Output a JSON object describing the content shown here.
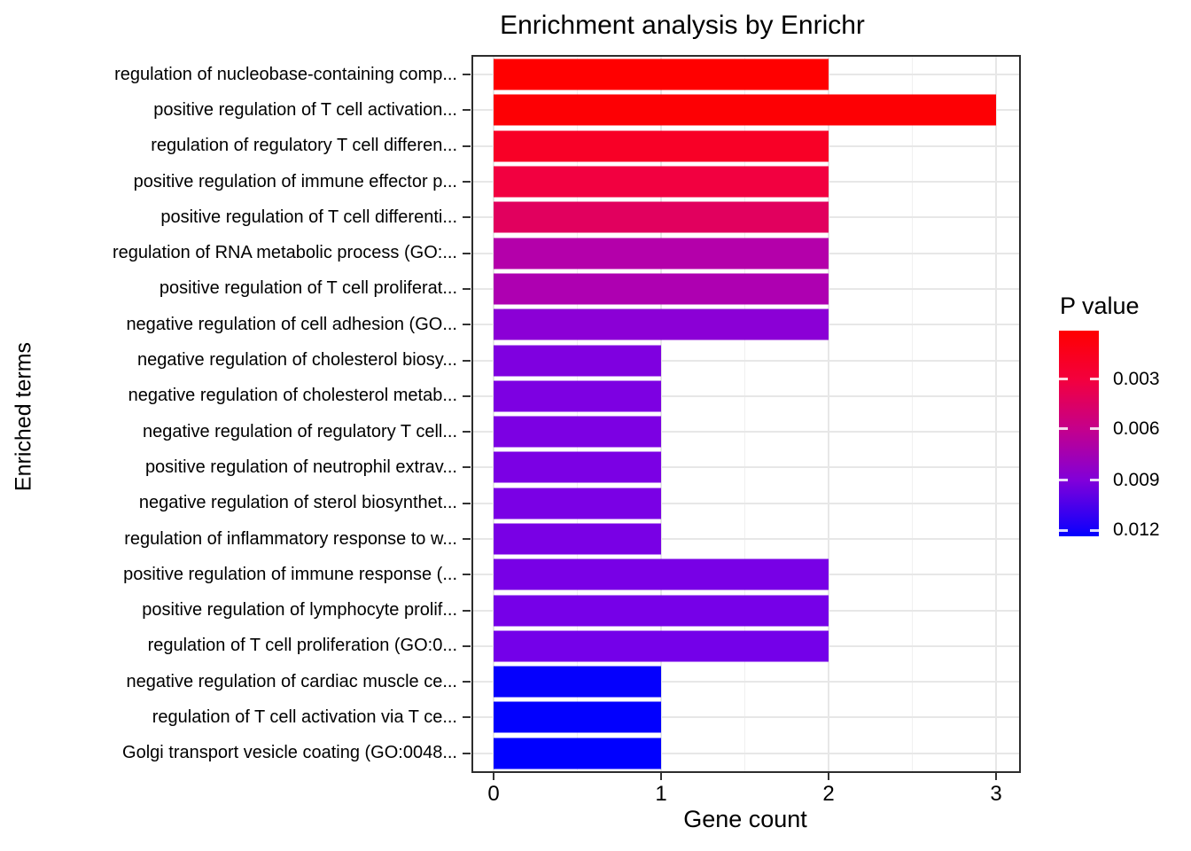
{
  "figure": {
    "title": "Enrichment analysis by Enrichr",
    "x_axis_label": "Gene count",
    "y_axis_label": "Enriched terms"
  },
  "legend": {
    "title": "P value",
    "tick_labels": [
      "0.003",
      "0.006",
      "0.009",
      "0.012"
    ],
    "top_color": "#FF0000",
    "bottom_color": "#0000FF"
  },
  "chart_data": {
    "type": "bar",
    "orientation": "horizontal",
    "title": "Enrichment analysis by Enrichr",
    "xlabel": "Gene count",
    "ylabel": "Enriched terms",
    "xlim": [
      0,
      3.17
    ],
    "x_tick_labels": [
      "0",
      "1",
      "2",
      "3"
    ],
    "x_tick_values": [
      0,
      1,
      2,
      3
    ],
    "grid": true,
    "legend_position": "right",
    "color_scale": {
      "label": "P value",
      "low_color": "#FF0000",
      "high_color": "#0000FF",
      "ticks": [
        0.003,
        0.006,
        0.009,
        0.012
      ]
    },
    "categories": [
      "regulation of nucleobase-containing comp...",
      "positive regulation of T cell activation...",
      "regulation of regulatory T cell differen...",
      "positive regulation of immune effector p...",
      "positive regulation of T cell differenti...",
      "regulation of RNA metabolic process (GO:...",
      "positive regulation of T cell proliferat...",
      "negative regulation of cell adhesion (GO...",
      "negative regulation of cholesterol biosy...",
      "negative regulation of cholesterol metab...",
      "negative regulation of regulatory T cell...",
      "positive regulation of neutrophil extrav...",
      "negative regulation of sterol biosynthet...",
      "regulation of inflammatory response to w...",
      "positive regulation of immune response (...",
      "positive regulation of lymphocyte prolif...",
      "regulation of T cell proliferation (GO:0...",
      "negative regulation of cardiac muscle ce...",
      "regulation of T cell activation via T ce...",
      "Golgi transport vesicle coating (GO:0048..."
    ],
    "values": [
      2,
      3,
      2,
      2,
      2,
      2,
      2,
      2,
      1,
      1,
      1,
      1,
      1,
      1,
      2,
      2,
      2,
      1,
      1,
      1
    ],
    "bar_colors": [
      "#FF0000",
      "#FD0004",
      "#F80026",
      "#F20040",
      "#E1005E",
      "#B400AA",
      "#AE00B1",
      "#8B00D6",
      "#7F00E0",
      "#7D00E2",
      "#7C00E3",
      "#7B00E4",
      "#7A00E5",
      "#7900E5",
      "#7800E6",
      "#7600E8",
      "#7400E9",
      "#0500FD",
      "#0200FE",
      "#0000FF"
    ]
  }
}
